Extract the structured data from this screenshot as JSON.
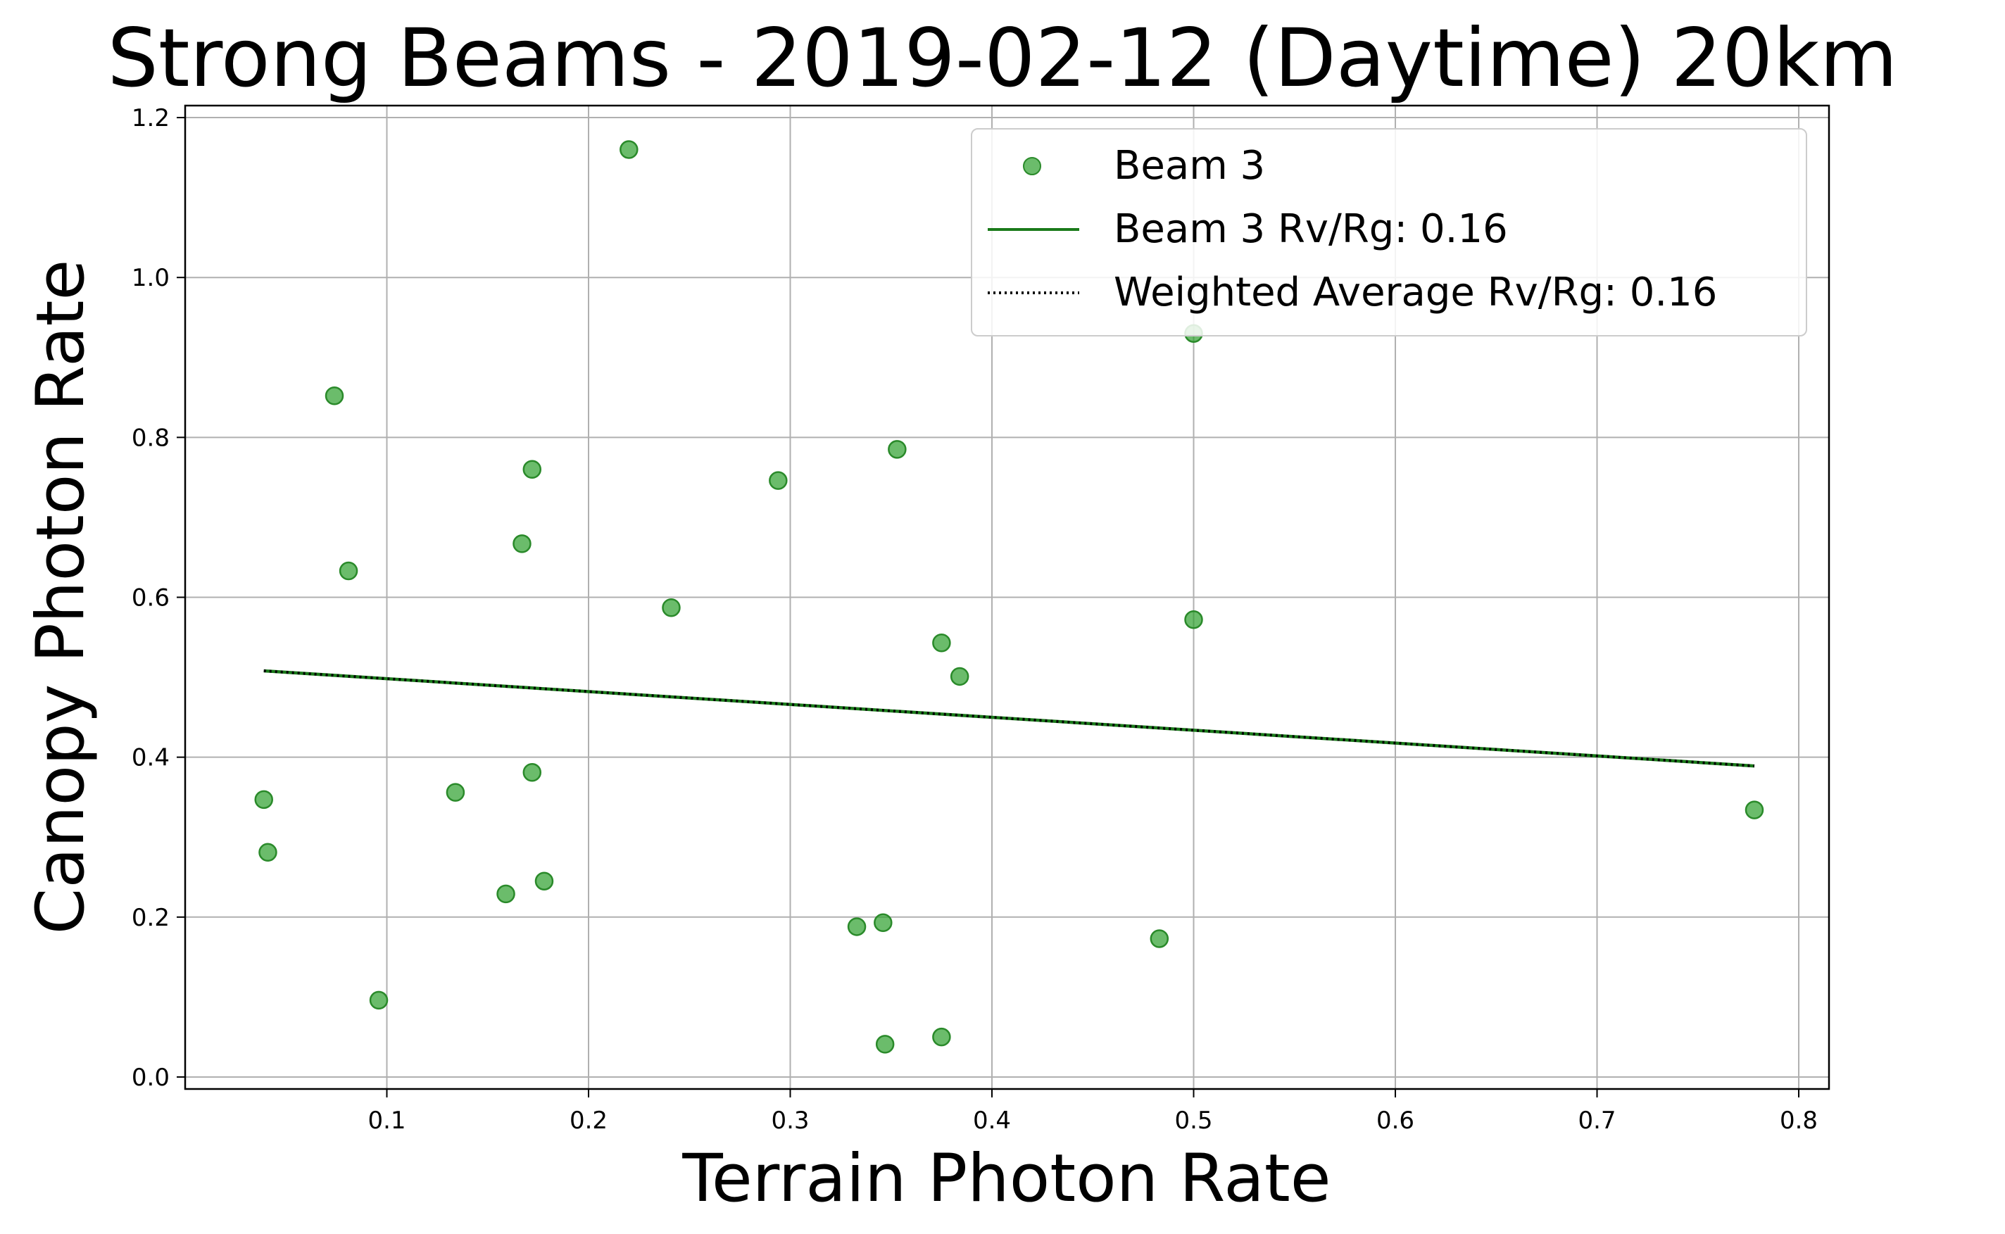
{
  "chart_data": {
    "type": "scatter",
    "title": "Strong Beams - 2019-02-12 (Daytime) 20km",
    "xlabel": "Terrain Photon Rate",
    "ylabel": "Canopy Photon Rate",
    "xlim": [
      0.0,
      0.815
    ],
    "ylim": [
      -0.015,
      1.215
    ],
    "xticks": [
      0.1,
      0.2,
      0.3,
      0.4,
      0.5,
      0.6,
      0.7,
      0.8
    ],
    "yticks": [
      0.0,
      0.2,
      0.4,
      0.6,
      0.8,
      1.0,
      1.2
    ],
    "grid": true,
    "legend_position": "top-right",
    "colors": {
      "points": "#2ca02c",
      "beam_line": "#1a7a1a",
      "average_line": "#000000"
    },
    "series": [
      {
        "name": "Beam 3",
        "type": "scatter",
        "points": [
          [
            0.22,
            1.16
          ],
          [
            0.5,
            0.93
          ],
          [
            0.074,
            0.852
          ],
          [
            0.353,
            0.785
          ],
          [
            0.172,
            0.76
          ],
          [
            0.294,
            0.746
          ],
          [
            0.167,
            0.667
          ],
          [
            0.081,
            0.633
          ],
          [
            0.241,
            0.587
          ],
          [
            0.5,
            0.572
          ],
          [
            0.375,
            0.543
          ],
          [
            0.384,
            0.501
          ],
          [
            0.172,
            0.381
          ],
          [
            0.134,
            0.356
          ],
          [
            0.039,
            0.347
          ],
          [
            0.778,
            0.334
          ],
          [
            0.041,
            0.281
          ],
          [
            0.178,
            0.245
          ],
          [
            0.159,
            0.229
          ],
          [
            0.346,
            0.193
          ],
          [
            0.333,
            0.188
          ],
          [
            0.483,
            0.173
          ],
          [
            0.096,
            0.096
          ],
          [
            0.375,
            0.05
          ],
          [
            0.347,
            0.041
          ]
        ]
      },
      {
        "name": "Beam 3 Rv/Rg: 0.16",
        "type": "line",
        "points": [
          [
            0.039,
            0.508
          ],
          [
            0.778,
            0.389
          ]
        ]
      },
      {
        "name": "Weighted Average Rv/Rg: 0.16",
        "type": "line",
        "style": "dotted",
        "points": [
          [
            0.039,
            0.508
          ],
          [
            0.778,
            0.389
          ]
        ]
      }
    ]
  }
}
